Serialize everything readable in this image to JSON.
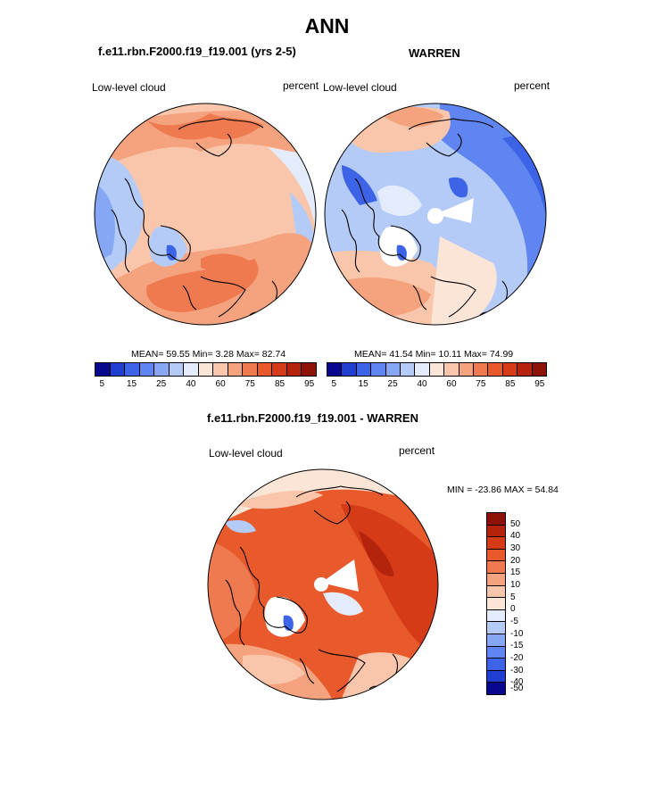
{
  "title": "ANN",
  "panels": [
    {
      "id": "model",
      "subtitle": "f.e11.rbn.F2000.f19_f19.001 (yrs 2-5)",
      "left_label": "Low-level cloud",
      "right_label": "percent",
      "stats": "MEAN=  59.55  Min=   3.28  Max=  82.74"
    },
    {
      "id": "obs",
      "subtitle": "WARREN",
      "left_label": "Low-level cloud",
      "right_label": "percent",
      "stats": "MEAN=  41.54  Min=  10.11  Max=  74.99"
    },
    {
      "id": "diff",
      "subtitle": "f.e11.rbn.F2000.f19_f19.001 - WARREN",
      "left_label": "Low-level cloud",
      "right_label": "percent",
      "stats": "MIN = -23.86 MAX =  54.84"
    }
  ],
  "colorbar_abs": {
    "colors": [
      "#08088f",
      "#1f3fd0",
      "#3d63e6",
      "#5e85f0",
      "#86a7f4",
      "#b4cbf8",
      "#e4ecfb",
      "#fbe5d6",
      "#f9c6ab",
      "#f5a27e",
      "#ef7a4f",
      "#e85a2c",
      "#d63b18",
      "#b4230c",
      "#8d1208"
    ],
    "labels": [
      "5",
      "15",
      "25",
      "40",
      "60",
      "75",
      "85",
      "95"
    ]
  },
  "colorbar_diff": {
    "colors": [
      "#8d1208",
      "#b4230c",
      "#d63b18",
      "#e85a2c",
      "#ef7a4f",
      "#f5a27e",
      "#f9c6ab",
      "#fbe5d6",
      "#e4ecfb",
      "#b4cbf8",
      "#86a7f4",
      "#5e85f0",
      "#3d63e6",
      "#1f3fd0",
      "#08088f"
    ],
    "labels": [
      "50",
      "40",
      "30",
      "20",
      "15",
      "10",
      "5",
      "0",
      "-5",
      "-10",
      "-15",
      "-20",
      "-30",
      "-40",
      "-50"
    ]
  }
}
